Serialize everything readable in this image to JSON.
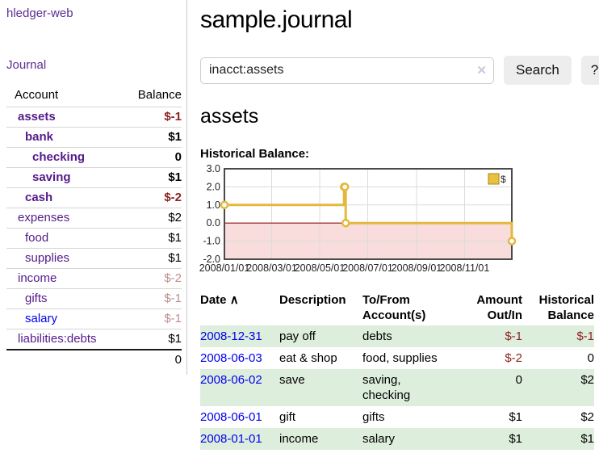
{
  "sidebar": {
    "brand": "hledger-web",
    "nav_journal": "Journal",
    "accounts_table": {
      "headers": [
        "Account",
        "Balance"
      ],
      "rows": [
        {
          "name": "assets",
          "level": 1,
          "bold": true,
          "balance": "$-1",
          "balance_style": "neg-strong"
        },
        {
          "name": "bank",
          "level": 2,
          "bold": true,
          "balance": "$1",
          "balance_style": "pos"
        },
        {
          "name": "checking",
          "level": 3,
          "bold": true,
          "balance": "0",
          "balance_style": "pos"
        },
        {
          "name": "saving",
          "level": 3,
          "bold": true,
          "balance": "$1",
          "balance_style": "pos"
        },
        {
          "name": "cash",
          "level": 2,
          "bold": true,
          "balance": "$-2",
          "balance_style": "neg-strong"
        },
        {
          "name": "expenses",
          "level": 1,
          "bold": false,
          "balance": "$2",
          "balance_style": "pos"
        },
        {
          "name": "food",
          "level": 2,
          "bold": false,
          "balance": "$1",
          "balance_style": "pos"
        },
        {
          "name": "supplies",
          "level": 2,
          "bold": false,
          "balance": "$1",
          "balance_style": "pos"
        },
        {
          "name": "income",
          "level": 1,
          "bold": false,
          "balance": "$-2",
          "balance_style": "neg-muted"
        },
        {
          "name": "gifts",
          "level": 2,
          "bold": false,
          "balance": "$-1",
          "balance_style": "neg-muted"
        },
        {
          "name": "salary",
          "level": 2,
          "bold": false,
          "link_blue": true,
          "balance": "$-1",
          "balance_style": "neg-muted"
        },
        {
          "name": "liabilities:debts",
          "level": 1,
          "bold": false,
          "balance": "$1",
          "balance_style": "pos"
        }
      ],
      "total": "0"
    }
  },
  "main": {
    "title": "sample.journal",
    "search": {
      "value": "inacct:assets",
      "clear_icon": "✕",
      "button": "Search",
      "help_button": "?"
    },
    "account_heading": "assets",
    "chart_label": "Historical Balance:",
    "register_table": {
      "headers": [
        "Date",
        "Description",
        "To/From Account(s)",
        "Amount Out/In",
        "Historical Balance"
      ],
      "sort_indicator": "∧",
      "rows": [
        {
          "date": "2008-12-31",
          "description": "pay off",
          "accounts": "debts",
          "amount": "$-1",
          "balance": "$-1"
        },
        {
          "date": "2008-06-03",
          "description": "eat & shop",
          "accounts": "food, supplies",
          "amount": "$-2",
          "balance": "0"
        },
        {
          "date": "2008-06-02",
          "description": "save",
          "accounts": "saving, checking",
          "amount": "0",
          "balance": "$2"
        },
        {
          "date": "2008-06-01",
          "description": "gift",
          "accounts": "gifts",
          "amount": "$1",
          "balance": "$2"
        },
        {
          "date": "2008-01-01",
          "description": "income",
          "accounts": "salary",
          "amount": "$1",
          "balance": "$1"
        }
      ]
    }
  },
  "chart_data": {
    "type": "line",
    "title": "Historical Balance:",
    "step": true,
    "legend": [
      {
        "label": "$",
        "position": "top-right"
      }
    ],
    "points": [
      {
        "date": "2008-01-01",
        "day": 0,
        "value": 1
      },
      {
        "date": "2008-06-01",
        "day": 152,
        "value": 2
      },
      {
        "date": "2008-06-02",
        "day": 153,
        "value": 2
      },
      {
        "date": "2008-06-03",
        "day": 154,
        "value": 0
      },
      {
        "date": "2008-12-31",
        "day": 365,
        "value": -1
      }
    ],
    "xlim_days": [
      0,
      365
    ],
    "ylim": [
      -2,
      3
    ],
    "y_ticks": [
      "3.0",
      "2.0",
      "1.0",
      "0.0",
      "-1.0",
      "-2.0"
    ],
    "y_tick_values": [
      3,
      2,
      1,
      0,
      -1,
      -2
    ],
    "x_ticks": [
      {
        "label": "2008/01/01",
        "day": 0
      },
      {
        "label": "2008/03/01",
        "day": 60
      },
      {
        "label": "2008/05/01",
        "day": 121
      },
      {
        "label": "2008/07/01",
        "day": 182
      },
      {
        "label": "2008/09/01",
        "day": 244
      },
      {
        "label": "2008/11/01",
        "day": 305
      }
    ],
    "grid": true,
    "colors": {
      "line": "#e4b83e",
      "marker_fill": "#ffffff",
      "negative_region": "#f9dcdc",
      "zero_line": "#8f0e0e",
      "grid": "#dcdcdc",
      "border": "#4a4a4a",
      "legend_swatch": "#e9c13f",
      "legend_swatch_border": "#a8861f",
      "tick_text": "#222222"
    }
  },
  "colors": {
    "link_purple": "#551a8b",
    "link_blue": "#0000ee",
    "negative_strong": "#8b2423",
    "negative_muted": "#bc8f8f",
    "row_stripe_green": "#deeedd"
  }
}
